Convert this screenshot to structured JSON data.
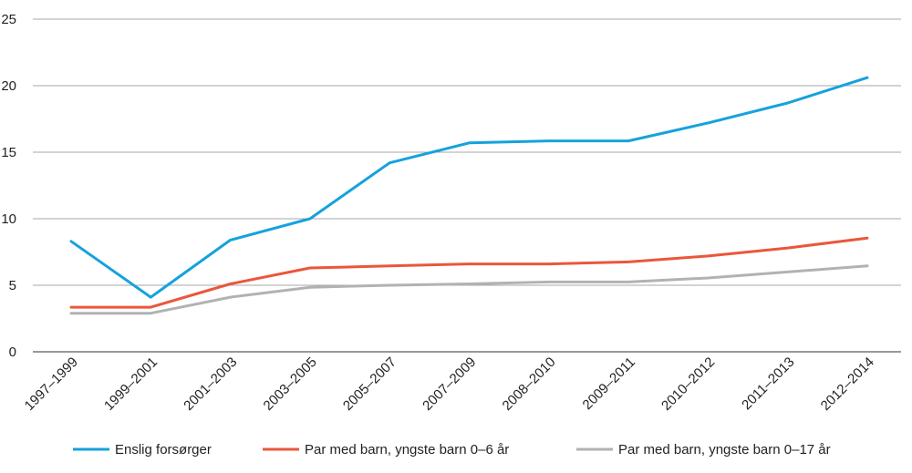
{
  "chart_data": {
    "type": "line",
    "categories": [
      "1997–1999",
      "1999–2001",
      "2001–2003",
      "2003–2005",
      "2005–2007",
      "2007–2009",
      "2008–2010",
      "2009–2011",
      "2010–2012",
      "2011–2013",
      "2012–2014"
    ],
    "series": [
      {
        "name": "Enslig forsørger",
        "color": "#16a2dc",
        "values": [
          8.3,
          4.1,
          8.4,
          10.0,
          14.2,
          15.7,
          15.85,
          15.85,
          17.2,
          18.7,
          20.6
        ]
      },
      {
        "name": "Par med barn, yngste barn 0–6 år",
        "color": "#e9573b",
        "values": [
          3.35,
          3.35,
          5.1,
          6.3,
          6.45,
          6.6,
          6.6,
          6.75,
          7.2,
          7.8,
          8.55
        ]
      },
      {
        "name": "Par med barn, yngste barn 0–17 år",
        "color": "#b2b2b2",
        "values": [
          2.9,
          2.9,
          4.1,
          4.85,
          5.0,
          5.1,
          5.25,
          5.25,
          5.55,
          6.0,
          6.45
        ]
      }
    ],
    "ylim": [
      0,
      25
    ],
    "yticks": [
      0,
      5,
      10,
      15,
      20,
      25
    ],
    "grid": true,
    "legend_position": "bottom"
  }
}
